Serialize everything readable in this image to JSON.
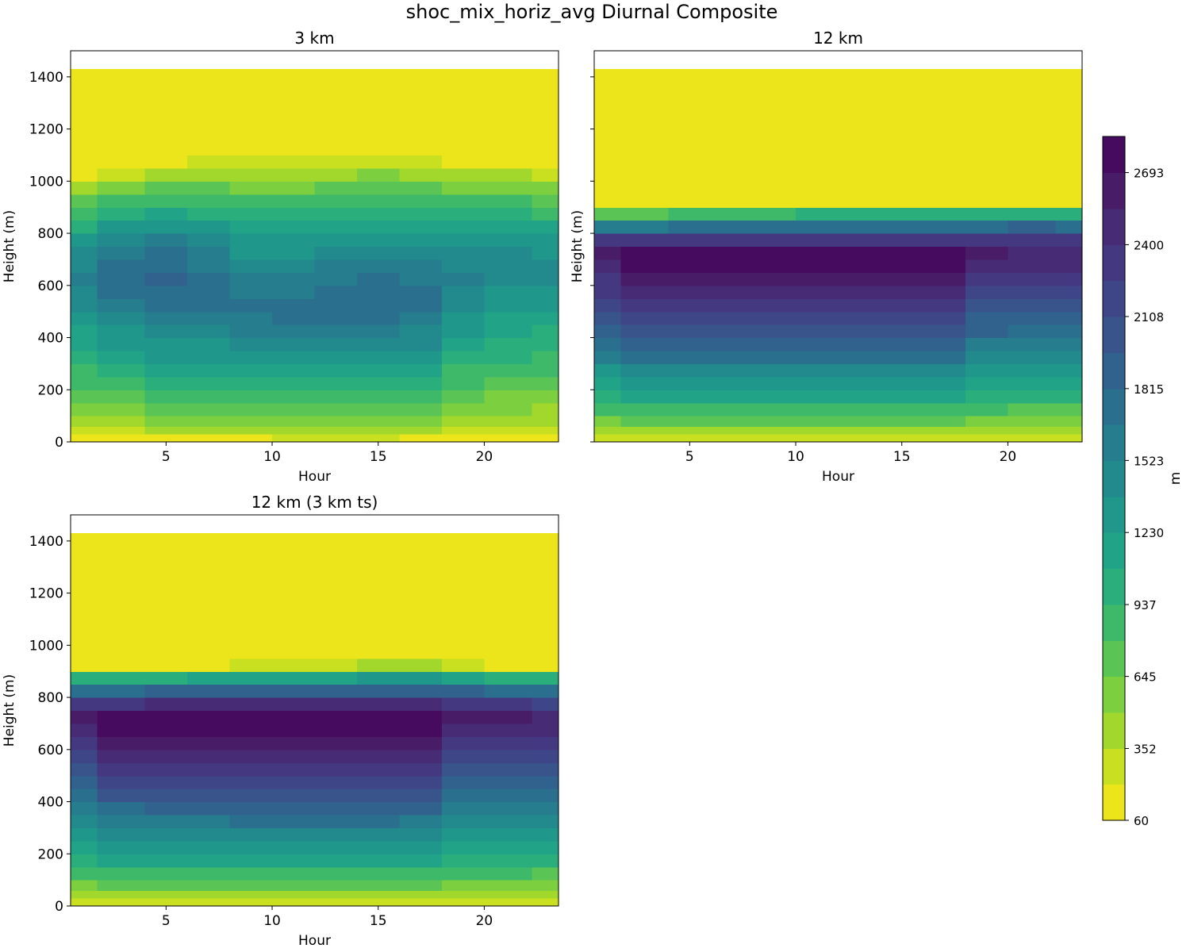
{
  "figure_title": "shoc_mix_horiz_avg Diurnal Composite",
  "chart_data": [
    {
      "type": "heatmap",
      "title": "3 km",
      "xlabel": "Hour",
      "ylabel": "Height (m)",
      "xlim": [
        0.5,
        23.5
      ],
      "ylim": [
        0,
        1500
      ],
      "data_top": 1430,
      "xticks": [
        5,
        10,
        15,
        20
      ],
      "yticks": [
        0,
        200,
        400,
        600,
        800,
        1000,
        1200,
        1400
      ],
      "show_ytick_labels": true,
      "hours": [
        0.5,
        3,
        5,
        7,
        9,
        11,
        13,
        15,
        17,
        19,
        21,
        23.5
      ],
      "heights": [
        0,
        30,
        60,
        100,
        150,
        200,
        250,
        300,
        350,
        400,
        450,
        500,
        550,
        600,
        650,
        700,
        750,
        800,
        850,
        900,
        950,
        1000,
        1050,
        1100,
        1150,
        1200,
        1300,
        1430
      ],
      "profile": {
        "pbl_height_by_hour": [
          1040,
          1060,
          1085,
          1105,
          1115,
          1120,
          1125,
          1130,
          1125,
          1105,
          1090,
          1075
        ],
        "peak_value_by_hour": [
          1560,
          1760,
          1880,
          1780,
          1700,
          1720,
          1770,
          1790,
          1720,
          1560,
          1490,
          1430
        ],
        "peak_height_by_hour": [
          620,
          620,
          610,
          560,
          500,
          480,
          500,
          510,
          520,
          600,
          650,
          650
        ],
        "surface_value": 60,
        "above_pbl_value": 60
      }
    },
    {
      "type": "heatmap",
      "title": "12 km",
      "xlabel": "Hour",
      "ylabel": "Height (m)",
      "xlim": [
        0.5,
        23.5
      ],
      "ylim": [
        0,
        1500
      ],
      "data_top": 1430,
      "xticks": [
        5,
        10,
        15,
        20
      ],
      "yticks": [
        0,
        200,
        400,
        600,
        800,
        1000,
        1200,
        1400
      ],
      "show_ytick_labels": false,
      "hours": [
        0.5,
        3,
        5,
        7,
        9,
        11,
        13,
        15,
        17,
        19,
        21,
        23.5
      ],
      "heights": [
        0,
        30,
        60,
        100,
        150,
        200,
        250,
        300,
        350,
        400,
        450,
        500,
        550,
        600,
        650,
        700,
        750,
        800,
        850,
        900,
        950,
        1000,
        1050,
        1100,
        1150,
        1200,
        1300,
        1430
      ],
      "profile": {
        "pbl_height_by_hour": [
          905,
          910,
          915,
          918,
          920,
          922,
          925,
          928,
          928,
          925,
          922,
          920
        ],
        "peak_value_by_hour": [
          2640,
          2820,
          2840,
          2850,
          2850,
          2850,
          2850,
          2845,
          2820,
          2600,
          2580,
          2560
        ],
        "peak_height_by_hour": [
          720,
          700,
          700,
          700,
          700,
          700,
          700,
          700,
          700,
          720,
          740,
          740
        ],
        "surface_value": 60,
        "above_pbl_value": 60
      }
    },
    {
      "type": "heatmap",
      "title": "12 km (3 km ts)",
      "xlabel": "Hour",
      "ylabel": "Height (m)",
      "xlim": [
        0.5,
        23.5
      ],
      "ylim": [
        0,
        1500
      ],
      "data_top": 1430,
      "xticks": [
        5,
        10,
        15,
        20
      ],
      "yticks": [
        0,
        200,
        400,
        600,
        800,
        1000,
        1200,
        1400
      ],
      "show_ytick_labels": true,
      "hours": [
        0.5,
        3,
        5,
        7,
        9,
        11,
        13,
        15,
        17,
        19,
        21,
        23.5
      ],
      "heights": [
        0,
        30,
        60,
        100,
        150,
        200,
        250,
        300,
        350,
        400,
        450,
        500,
        550,
        600,
        650,
        700,
        750,
        800,
        850,
        900,
        950,
        1000,
        1050,
        1100,
        1150,
        1200,
        1300,
        1430
      ],
      "profile": {
        "pbl_height_by_hour": [
          920,
          925,
          930,
          932,
          935,
          938,
          940,
          945,
          945,
          935,
          930,
          928
        ],
        "peak_value_by_hour": [
          2620,
          2800,
          2830,
          2840,
          2845,
          2845,
          2850,
          2850,
          2820,
          2620,
          2560,
          2540
        ],
        "peak_height_by_hour": [
          730,
          710,
          710,
          710,
          710,
          710,
          710,
          710,
          710,
          730,
          720,
          720
        ],
        "surface_value": 60,
        "above_pbl_value": 60
      }
    }
  ],
  "colorbar": {
    "label": "m",
    "min": 60,
    "max": 2840,
    "levels": [
      60,
      206,
      352,
      499,
      645,
      791,
      937,
      1084,
      1230,
      1376,
      1523,
      1669,
      1815,
      1961,
      2108,
      2254,
      2400,
      2547,
      2693,
      2840
    ],
    "tick_labels": [
      "60",
      "352",
      "645",
      "937",
      "1230",
      "1523",
      "1815",
      "2108",
      "2400",
      "2693"
    ],
    "tick_values": [
      60,
      352,
      645,
      937,
      1230,
      1523,
      1815,
      2108,
      2400,
      2693
    ],
    "colors": [
      "#ede51b",
      "#c8e020",
      "#a2d82c",
      "#7ccf3e",
      "#5ac454",
      "#3eb96a",
      "#2aae7c",
      "#20a386",
      "#1f978b",
      "#228a8d",
      "#267d8e",
      "#2b6f8e",
      "#31628d",
      "#38548b",
      "#3f4688",
      "#443880",
      "#472b75",
      "#481c67",
      "#460b5e"
    ]
  }
}
